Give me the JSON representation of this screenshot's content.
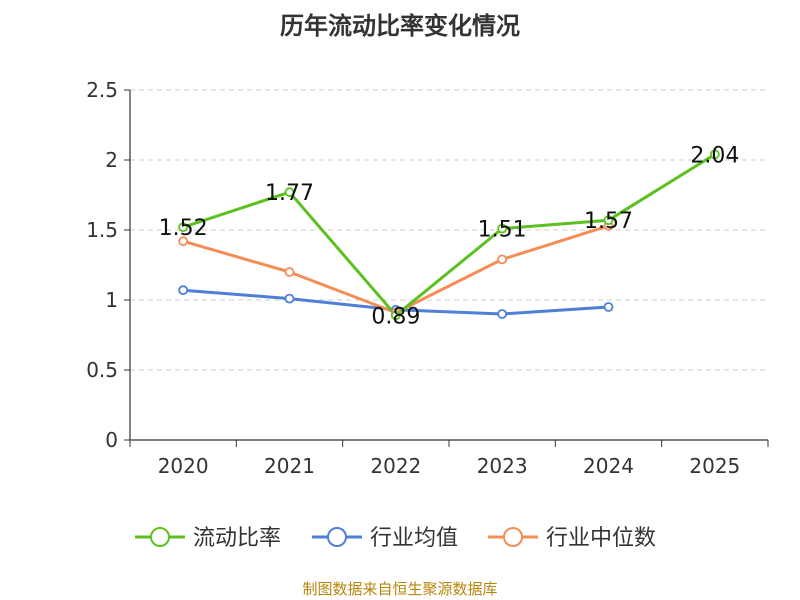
{
  "source_text": "制图数据来自恒生聚源数据库",
  "chart_data": {
    "type": "line",
    "title": "历年流动比率变化情况",
    "categories": [
      "2020",
      "2021",
      "2022",
      "2023",
      "2024",
      "2025"
    ],
    "y_ticks": [
      "0",
      "0.5",
      "1",
      "1.5",
      "2",
      "2.5"
    ],
    "ylim": [
      0,
      2.5
    ],
    "grid": true,
    "legend_position": "bottom",
    "series": [
      {
        "name": "流动比率",
        "color": "#5cc120",
        "values": [
          1.52,
          1.77,
          0.89,
          1.51,
          1.57,
          2.04
        ],
        "labels": [
          "1.52",
          "1.77",
          "0.89",
          "1.51",
          "1.57",
          "2.04"
        ]
      },
      {
        "name": "行业均值",
        "color": "#4f7fd6",
        "values": [
          1.07,
          1.01,
          0.93,
          0.9,
          0.95,
          null
        ]
      },
      {
        "name": "行业中位数",
        "color": "#f58d56",
        "values": [
          1.42,
          1.2,
          0.91,
          1.29,
          1.53,
          null
        ]
      }
    ]
  }
}
